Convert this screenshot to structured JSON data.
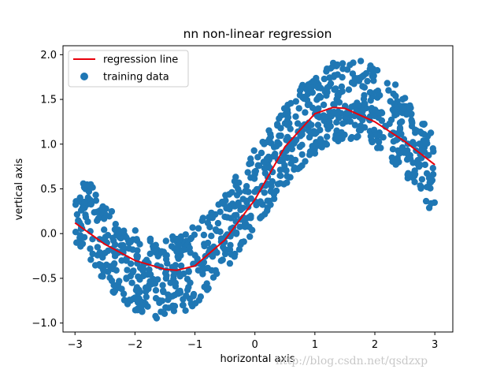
{
  "chart_data": {
    "type": "scatter",
    "title": "nn non-linear regression",
    "xlabel": "horizontal axis",
    "ylabel": "vertical axis",
    "xlim": [
      -3.2,
      3.3
    ],
    "ylim": [
      -1.1,
      2.1
    ],
    "x_ticks": [
      -3,
      -2,
      -1,
      0,
      1,
      2,
      3
    ],
    "x_tick_labels": [
      "−3",
      "−2",
      "−1",
      "0",
      "1",
      "2",
      "3"
    ],
    "y_ticks": [
      -1.0,
      -0.5,
      0.0,
      0.5,
      1.0,
      1.5,
      2.0
    ],
    "y_tick_labels": [
      "−1.0",
      "−0.5",
      "0.0",
      "0.5",
      "1.0",
      "1.5",
      "2.0"
    ],
    "legend_position": "top-left",
    "series": [
      {
        "name": "regression line",
        "kind": "line",
        "color": "#e8000b",
        "x": [
          -3.0,
          -2.5,
          -2.0,
          -1.5,
          -1.3,
          -1.0,
          -0.5,
          0.0,
          0.5,
          1.0,
          1.3,
          1.5,
          2.0,
          2.5,
          3.0
        ],
        "y": [
          0.12,
          -0.12,
          -0.3,
          -0.4,
          -0.41,
          -0.36,
          -0.07,
          0.38,
          0.97,
          1.34,
          1.41,
          1.4,
          1.25,
          1.03,
          0.77
        ]
      },
      {
        "name": "training data",
        "kind": "scatter",
        "color": "#1f77b4",
        "count": 1000,
        "x_range": [
          -3.0,
          3.0
        ],
        "trend": "sin(x) + 0.5",
        "noise_half_width": 0.45
      }
    ]
  },
  "watermark": "http://blog.csdn.net/qsdzxp"
}
